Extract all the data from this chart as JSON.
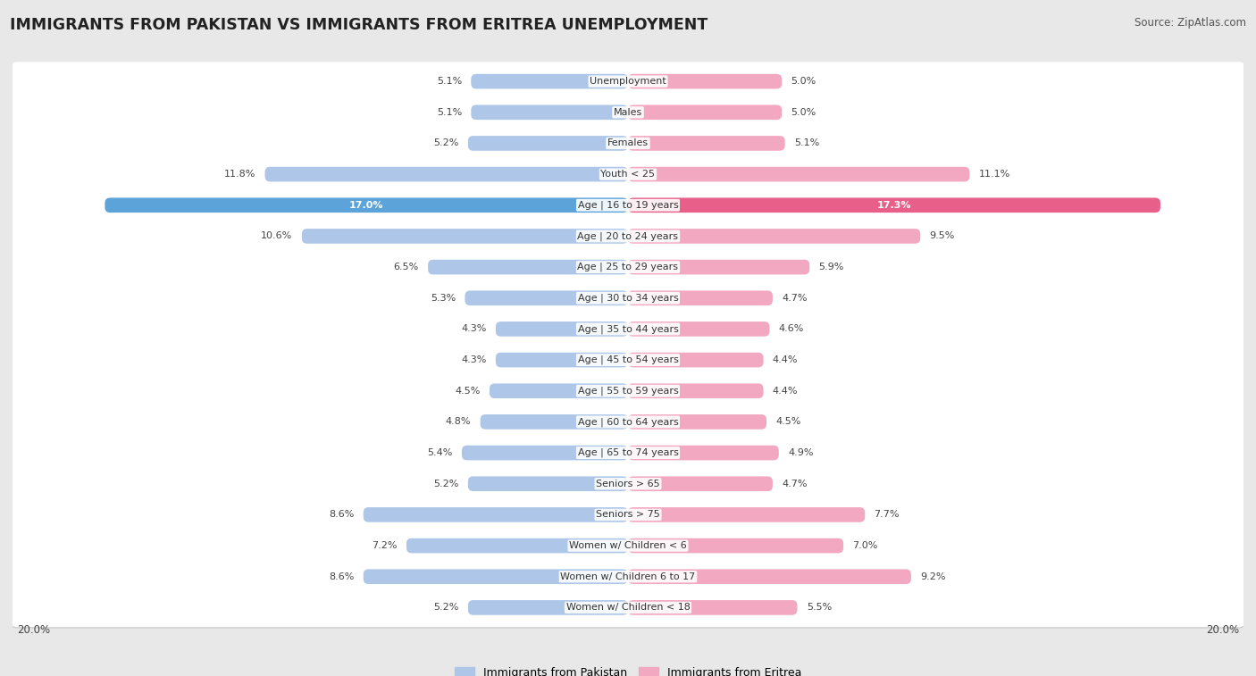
{
  "title": "IMMIGRANTS FROM PAKISTAN VS IMMIGRANTS FROM ERITREA UNEMPLOYMENT",
  "source": "Source: ZipAtlas.com",
  "categories": [
    "Unemployment",
    "Males",
    "Females",
    "Youth < 25",
    "Age | 16 to 19 years",
    "Age | 20 to 24 years",
    "Age | 25 to 29 years",
    "Age | 30 to 34 years",
    "Age | 35 to 44 years",
    "Age | 45 to 54 years",
    "Age | 55 to 59 years",
    "Age | 60 to 64 years",
    "Age | 65 to 74 years",
    "Seniors > 65",
    "Seniors > 75",
    "Women w/ Children < 6",
    "Women w/ Children 6 to 17",
    "Women w/ Children < 18"
  ],
  "pakistan_values": [
    5.1,
    5.1,
    5.2,
    11.8,
    17.0,
    10.6,
    6.5,
    5.3,
    4.3,
    4.3,
    4.5,
    4.8,
    5.4,
    5.2,
    8.6,
    7.2,
    8.6,
    5.2
  ],
  "eritrea_values": [
    5.0,
    5.0,
    5.1,
    11.1,
    17.3,
    9.5,
    5.9,
    4.7,
    4.6,
    4.4,
    4.4,
    4.5,
    4.9,
    4.7,
    7.7,
    7.0,
    9.2,
    5.5
  ],
  "pakistan_color": "#aec6e8",
  "eritrea_color": "#f2a8c0",
  "pakistan_highlight_color": "#5ba3d9",
  "eritrea_highlight_color": "#e8608a",
  "bg_color": "#e8e8e8",
  "row_bg_color": "#ffffff",
  "max_value": 20.0,
  "legend_pakistan": "Immigrants from Pakistan",
  "legend_eritrea": "Immigrants from Eritrea",
  "title_fontsize": 12.5,
  "source_fontsize": 8.5,
  "label_fontsize": 8,
  "value_fontsize": 8,
  "axis_label_fontsize": 8.5
}
